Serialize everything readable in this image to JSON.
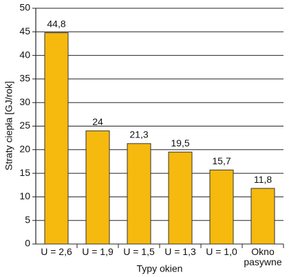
{
  "chart_data": {
    "type": "bar",
    "y_label": "Straty ciepła [GJ/rok]",
    "x_label": "Typy okien",
    "categories": [
      "U = 2,6",
      "U = 1,9",
      "U = 1,5",
      "U = 1,3",
      "U = 1,0",
      "Okno pasywne"
    ],
    "values": [
      44.8,
      24,
      21.3,
      19.5,
      15.7,
      11.8
    ],
    "value_labels": [
      "44,8",
      "24",
      "21,3",
      "19,5",
      "15,7",
      "11,8"
    ],
    "color": "#f6b90d",
    "ylim": [
      0,
      50
    ],
    "yticks": [
      0,
      5,
      10,
      15,
      20,
      25,
      30,
      35,
      40,
      45,
      50
    ],
    "grid": true
  }
}
